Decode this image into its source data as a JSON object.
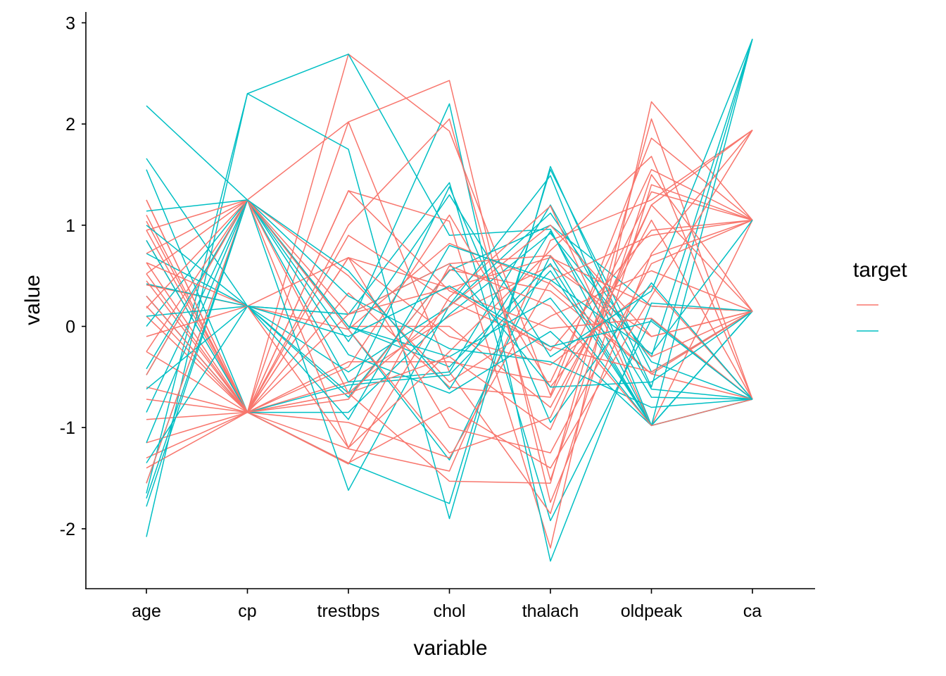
{
  "chart_data": {
    "type": "line",
    "subtype": "parallel-coordinates",
    "title": "",
    "xlabel": "variable",
    "ylabel": "value",
    "categories": [
      "age",
      "cp",
      "trestbps",
      "chol",
      "thalach",
      "oldpeak",
      "ca"
    ],
    "ylim": [
      -2.5,
      3.1
    ],
    "yticks": [
      -2,
      -1,
      0,
      1,
      2,
      3
    ],
    "grid": false,
    "legend": {
      "title": "target",
      "position": "right",
      "entries": [
        {
          "label": "",
          "color": "#F8766D"
        },
        {
          "label": "",
          "color": "#00BFC4"
        }
      ]
    },
    "series": [
      {
        "group": 0,
        "values": [
          1.25,
          -0.85,
          2.69,
          1.93,
          -0.68,
          1.86,
          1.05
        ]
      },
      {
        "group": 0,
        "values": [
          0.95,
          1.25,
          2.02,
          2.43,
          -1.74,
          0.72,
          1.94
        ]
      },
      {
        "group": 0,
        "values": [
          0.52,
          -0.85,
          1.34,
          1.04,
          -2.19,
          2.22,
          1.05
        ]
      },
      {
        "group": 0,
        "values": [
          0.3,
          -0.85,
          1.0,
          2.05,
          -1.52,
          1.5,
          0.15
        ]
      },
      {
        "group": 0,
        "values": [
          -0.6,
          -0.85,
          -1.36,
          0.29,
          1.19,
          -0.98,
          1.05
        ]
      },
      {
        "group": 0,
        "values": [
          0.1,
          -0.85,
          -1.21,
          -1.43,
          0.85,
          1.25,
          1.94
        ]
      },
      {
        "group": 0,
        "values": [
          0.72,
          1.25,
          -0.66,
          -1.53,
          -1.55,
          2.05,
          -0.72
        ]
      },
      {
        "group": 0,
        "values": [
          -1.15,
          -0.85,
          0.68,
          0.38,
          -0.24,
          0.95,
          1.05
        ]
      },
      {
        "group": 0,
        "values": [
          0.41,
          0.2,
          -0.03,
          0.82,
          0.42,
          -0.47,
          0.15
        ]
      },
      {
        "group": 0,
        "values": [
          -0.48,
          1.25,
          -1.2,
          -0.25,
          0.75,
          1.68,
          -0.72
        ]
      },
      {
        "group": 0,
        "values": [
          1.04,
          -0.85,
          0.33,
          -0.6,
          -0.7,
          1.33,
          1.05
        ]
      },
      {
        "group": 0,
        "values": [
          -0.92,
          -0.85,
          -0.55,
          0.1,
          0.6,
          -0.1,
          0.15
        ]
      },
      {
        "group": 0,
        "values": [
          0.63,
          0.2,
          0.68,
          -1.0,
          -1.25,
          0.62,
          1.05
        ]
      },
      {
        "group": 0,
        "values": [
          -1.3,
          -0.85,
          -0.72,
          0.56,
          0.35,
          -0.47,
          -0.72
        ]
      },
      {
        "group": 0,
        "values": [
          0.18,
          1.25,
          -0.03,
          -1.25,
          -0.9,
          1.2,
          0.15
        ]
      },
      {
        "group": 0,
        "values": [
          -0.25,
          -0.85,
          1.34,
          0.35,
          -0.02,
          0.08,
          -0.72
        ]
      },
      {
        "group": 0,
        "values": [
          0.85,
          -0.85,
          -0.35,
          -0.35,
          -0.55,
          1.55,
          1.05
        ]
      },
      {
        "group": 0,
        "values": [
          -1.55,
          1.25,
          0.12,
          0.62,
          0.7,
          -0.3,
          0.15
        ]
      },
      {
        "group": 0,
        "values": [
          0.45,
          -0.85,
          -1.35,
          -0.8,
          -1.4,
          0.3,
          1.94
        ]
      },
      {
        "group": 0,
        "values": [
          1.1,
          -0.85,
          0.68,
          -0.1,
          -0.38,
          0.4,
          -0.72
        ]
      },
      {
        "group": 0,
        "values": [
          -0.72,
          -0.85,
          -0.66,
          0.2,
          1.0,
          -0.1,
          0.15
        ]
      },
      {
        "group": 0,
        "values": [
          0.3,
          -0.85,
          -0.95,
          -1.3,
          0.45,
          0.9,
          1.05
        ]
      },
      {
        "group": 0,
        "values": [
          0.52,
          1.25,
          0.0,
          0.0,
          -0.8,
          1.05,
          -0.72
        ]
      },
      {
        "group": 0,
        "values": [
          -1.4,
          -0.85,
          0.12,
          0.38,
          0.68,
          0.2,
          0.15
        ]
      },
      {
        "group": 0,
        "values": [
          0.95,
          -0.85,
          2.02,
          -0.45,
          -1.85,
          1.4,
          1.05
        ]
      },
      {
        "group": 0,
        "values": [
          -0.1,
          0.2,
          -1.2,
          0.6,
          0.2,
          -0.98,
          -0.72
        ]
      },
      {
        "group": 0,
        "values": [
          0.63,
          -0.85,
          -0.4,
          1.1,
          -0.6,
          0.7,
          1.05
        ]
      },
      {
        "group": 0,
        "values": [
          -0.25,
          1.25,
          0.5,
          -0.55,
          0.1,
          0.55,
          0.15
        ]
      },
      {
        "group": 0,
        "values": [
          1.25,
          -0.85,
          -0.66,
          -0.3,
          -1.02,
          1.2,
          1.94
        ]
      },
      {
        "group": 0,
        "values": [
          0.2,
          -0.85,
          0.9,
          0.25,
          -0.2,
          -0.45,
          0.15
        ]
      },
      {
        "group": 1,
        "values": [
          -1.65,
          2.3,
          2.69,
          0.9,
          0.96,
          -0.98,
          -0.72
        ]
      },
      {
        "group": 1,
        "values": [
          2.18,
          1.25,
          -0.03,
          2.2,
          -2.32,
          0.23,
          0.15
        ]
      },
      {
        "group": 1,
        "values": [
          -2.08,
          2.3,
          1.75,
          -1.9,
          1.58,
          -0.6,
          2.84
        ]
      },
      {
        "group": 1,
        "values": [
          1.66,
          0.2,
          0.12,
          1.42,
          -1.92,
          0.07,
          -0.72
        ]
      },
      {
        "group": 1,
        "values": [
          -1.78,
          1.25,
          -1.62,
          0.21,
          1.49,
          -0.98,
          2.84
        ]
      },
      {
        "group": 1,
        "values": [
          1.55,
          -0.85,
          -1.35,
          -1.75,
          1.55,
          -0.45,
          0.15
        ]
      },
      {
        "group": 1,
        "values": [
          1.14,
          1.25,
          0.55,
          -0.62,
          0.94,
          -0.7,
          -0.72
        ]
      },
      {
        "group": 1,
        "values": [
          -0.62,
          0.2,
          -0.66,
          1.38,
          -0.95,
          0.43,
          -0.72
        ]
      },
      {
        "group": 1,
        "values": [
          0.0,
          1.25,
          0.0,
          -0.4,
          0.62,
          -0.98,
          0.15
        ]
      },
      {
        "group": 1,
        "values": [
          -1.35,
          0.2,
          -0.92,
          0.8,
          0.46,
          -0.27,
          1.05
        ]
      },
      {
        "group": 1,
        "values": [
          -0.42,
          1.25,
          -0.28,
          -0.66,
          -0.05,
          -0.98,
          -0.72
        ]
      },
      {
        "group": 1,
        "values": [
          0.72,
          0.2,
          -0.7,
          0.55,
          1.0,
          0.2,
          0.15
        ]
      },
      {
        "group": 1,
        "values": [
          -1.15,
          1.25,
          0.3,
          -0.22,
          -0.35,
          -0.8,
          -0.72
        ]
      },
      {
        "group": 1,
        "values": [
          0.3,
          -0.85,
          -0.85,
          0.12,
          0.92,
          -0.3,
          2.84
        ]
      },
      {
        "group": 1,
        "values": [
          -0.85,
          1.25,
          -0.03,
          -1.32,
          0.7,
          -0.98,
          -0.72
        ]
      },
      {
        "group": 1,
        "values": [
          0.1,
          0.2,
          0.12,
          0.62,
          -0.6,
          -0.55,
          0.15
        ]
      },
      {
        "group": 1,
        "values": [
          -1.55,
          1.25,
          -0.55,
          -0.45,
          1.2,
          -0.62,
          -0.72
        ]
      },
      {
        "group": 1,
        "values": [
          1.0,
          0.2,
          -0.1,
          0.4,
          -0.2,
          0.05,
          -0.72
        ]
      },
      {
        "group": 1,
        "values": [
          -0.48,
          1.25,
          0.0,
          -0.3,
          0.28,
          -0.98,
          0.15
        ]
      },
      {
        "group": 1,
        "values": [
          0.42,
          0.2,
          -0.45,
          0.2,
          1.12,
          -0.35,
          -0.72
        ]
      },
      {
        "group": 1,
        "values": [
          -1.7,
          1.25,
          -0.15,
          1.3,
          -0.3,
          0.35,
          2.84
        ]
      },
      {
        "group": 1,
        "values": [
          0.85,
          -0.85,
          -0.58,
          -0.48,
          0.55,
          -0.98,
          0.15
        ]
      }
    ]
  }
}
